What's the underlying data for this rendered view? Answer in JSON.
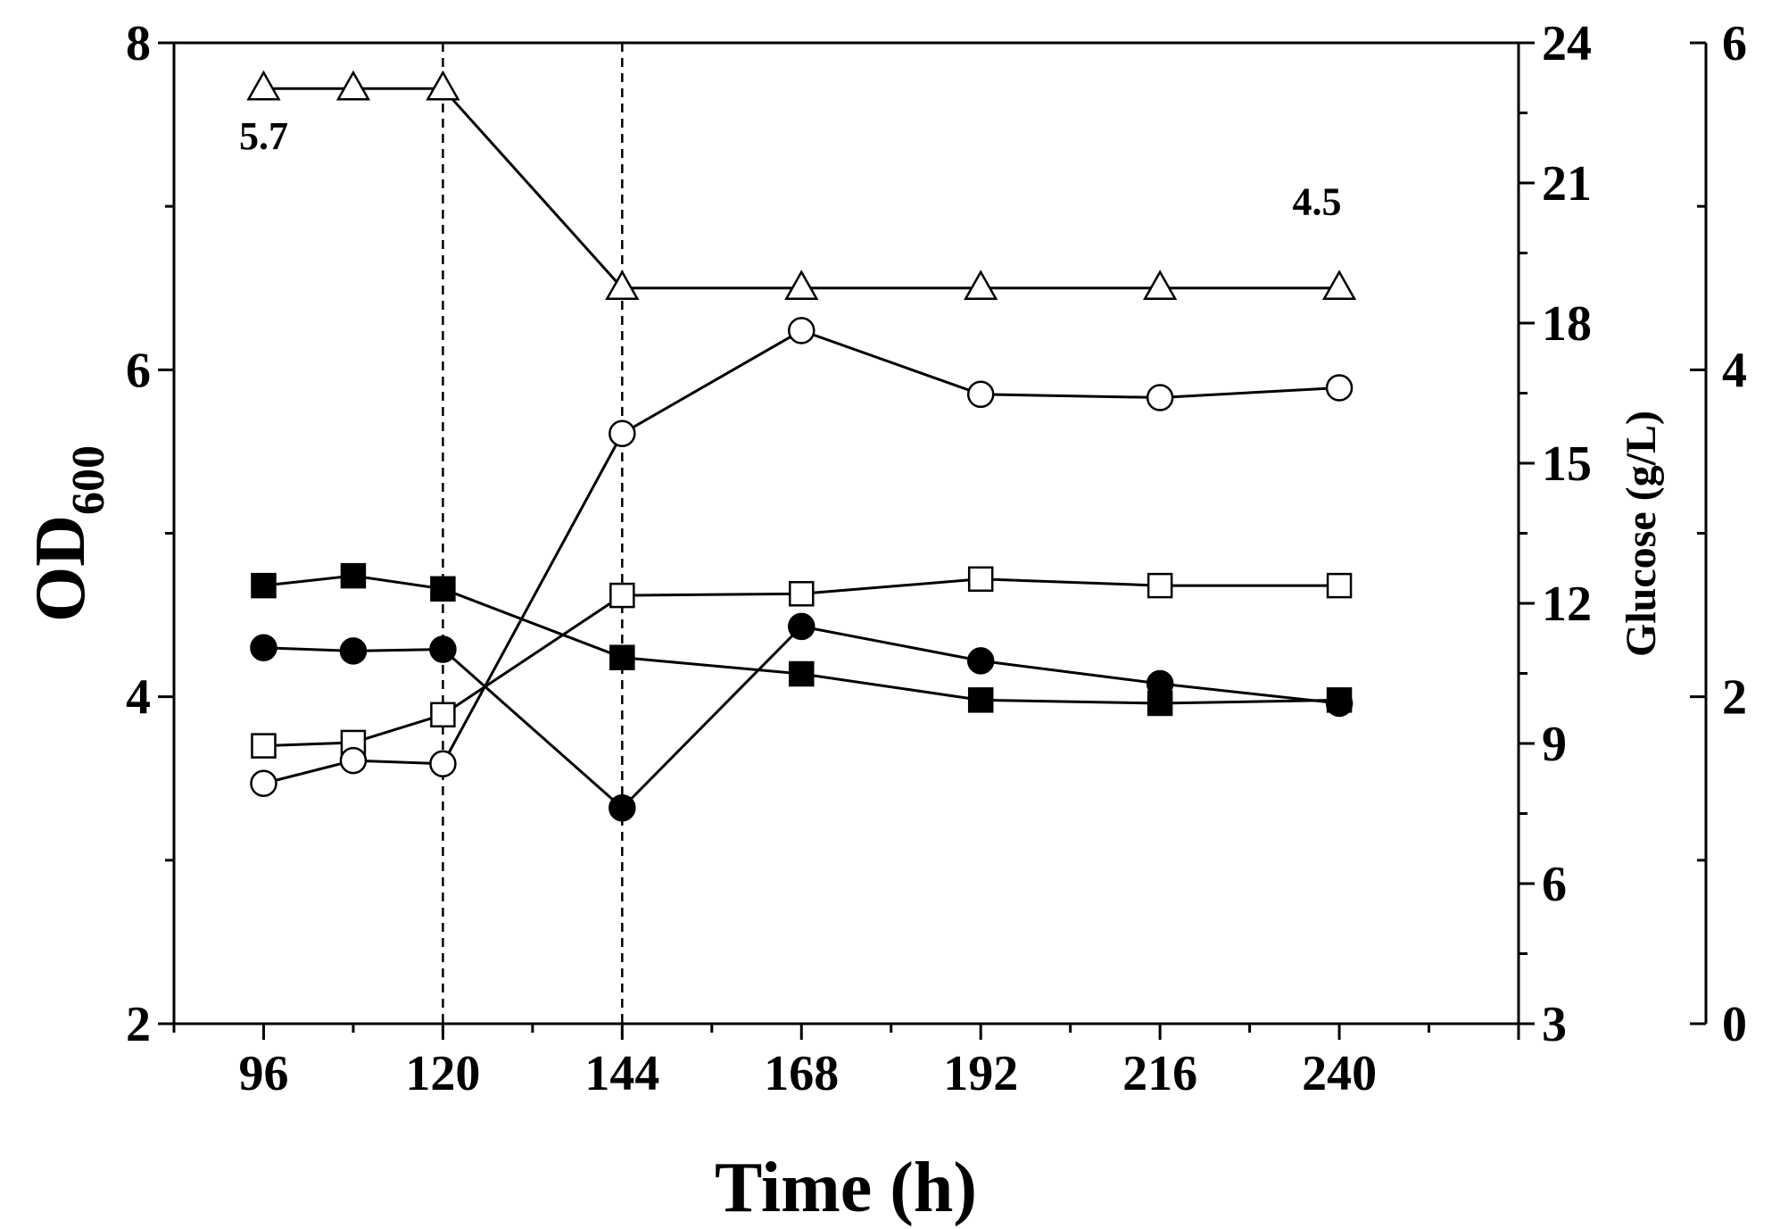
{
  "chart_data": {
    "type": "line",
    "xlabel": "Time (h)",
    "ylabel": "OD",
    "ylabel_subscript": "600",
    "y2label": "Glucose (g/L)",
    "x_ticks": [
      "96",
      "120",
      "144",
      "168",
      "192",
      "216",
      "240"
    ],
    "xlim": [
      84,
      264
    ],
    "y_left": {
      "range": [
        2,
        8
      ],
      "ticks": [
        "2",
        "4",
        "6",
        "8"
      ]
    },
    "y_mid": {
      "range": [
        3,
        24
      ],
      "ticks": [
        "3",
        "6",
        "9",
        "12",
        "15",
        "18",
        "21",
        "24"
      ]
    },
    "y_right": {
      "range": [
        0,
        6
      ],
      "ticks": [
        "0",
        "2",
        "4",
        "6"
      ]
    },
    "reference_lines_x": [
      120,
      144
    ],
    "annotations": [
      {
        "id": "a1",
        "text": "5.7",
        "x": 96,
        "y": 7.35
      },
      {
        "id": "a2",
        "text": "4.5",
        "x": 237,
        "y": 6.95
      }
    ],
    "series": [
      {
        "id": "filled-square",
        "marker": "square",
        "filled": true,
        "axis": "left",
        "x": [
          96,
          108,
          120,
          144,
          168,
          192,
          216,
          240
        ],
        "values": [
          4.68,
          4.74,
          4.66,
          4.24,
          4.14,
          3.98,
          3.96,
          3.98
        ]
      },
      {
        "id": "filled-circle",
        "marker": "circle",
        "filled": true,
        "axis": "left",
        "x": [
          96,
          108,
          120,
          144,
          168,
          192,
          216,
          240
        ],
        "values": [
          4.3,
          4.28,
          4.29,
          3.32,
          4.43,
          4.22,
          4.08,
          3.96
        ]
      },
      {
        "id": "open-square",
        "marker": "square",
        "filled": false,
        "axis": "left",
        "x": [
          96,
          108,
          120,
          144,
          168,
          192,
          216,
          240
        ],
        "values": [
          3.7,
          3.72,
          3.89,
          4.62,
          4.63,
          4.72,
          4.68,
          4.68
        ]
      },
      {
        "id": "open-circle",
        "marker": "circle",
        "filled": false,
        "axis": "left",
        "x": [
          96,
          108,
          120,
          144,
          168,
          192,
          216,
          240
        ],
        "values": [
          3.47,
          3.61,
          3.59,
          5.61,
          6.24,
          5.85,
          5.83,
          5.89
        ]
      },
      {
        "id": "open-triangle",
        "marker": "triangle",
        "filled": false,
        "axis": "left",
        "x": [
          96,
          108,
          120,
          144,
          168,
          192,
          216,
          240
        ],
        "values": [
          7.72,
          7.72,
          7.72,
          6.5,
          6.5,
          6.5,
          6.5,
          6.5
        ]
      }
    ]
  }
}
